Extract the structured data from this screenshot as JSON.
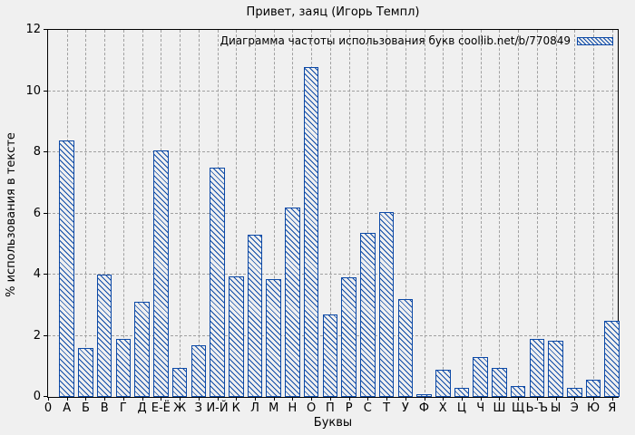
{
  "chart_data": {
    "type": "bar",
    "title": "Привет, заяц (Игорь Темпл)",
    "legend_label": "Диаграмма частоты использования букв coollib.net/b/770849",
    "xlabel": "Буквы",
    "ylabel": "% использования в тексте",
    "origin_tick_label": "0",
    "categories": [
      "А",
      "Б",
      "В",
      "Г",
      "Д",
      "Е-Ё",
      "Ж",
      "З",
      "И-Й",
      "К",
      "Л",
      "М",
      "Н",
      "О",
      "П",
      "Р",
      "С",
      "Т",
      "У",
      "Ф",
      "Х",
      "Ц",
      "Ч",
      "Ш",
      "Щ",
      "Ь-Ъ",
      "Ы",
      "Э",
      "Ю",
      "Я"
    ],
    "values": [
      8.4,
      1.6,
      4.0,
      1.9,
      3.1,
      8.05,
      0.95,
      1.7,
      7.5,
      3.95,
      5.3,
      3.85,
      6.2,
      10.8,
      2.7,
      3.9,
      5.35,
      6.05,
      3.2,
      0.1,
      0.9,
      0.3,
      1.3,
      0.95,
      0.35,
      1.9,
      1.85,
      0.3,
      0.55,
      2.5
    ],
    "ylim": [
      0,
      12
    ],
    "yticks": [
      0,
      2,
      4,
      6,
      8,
      10,
      12
    ],
    "grid": true,
    "legend_position": "top-right",
    "hatch_style": "diagonal-backslash",
    "colors": {
      "bar": "#0c49a6",
      "background": "#f0f0f0",
      "grid": "#a0a0a0",
      "axis": "#000000"
    }
  }
}
